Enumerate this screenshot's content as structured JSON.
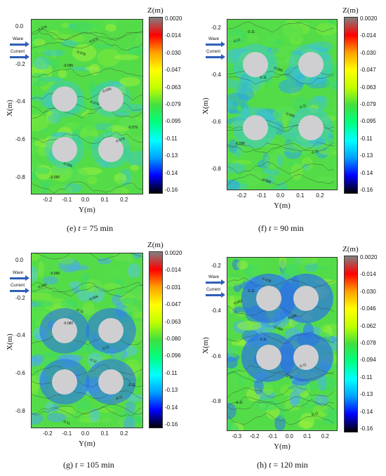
{
  "colorbar": {
    "title": "Z(m)",
    "stops": [
      "#000000",
      "#0000ff",
      "#00a0ff",
      "#00ffff",
      "#00ff80",
      "#40e040",
      "#c0ff00",
      "#ffff00",
      "#ffa000",
      "#ff0000",
      "#808080"
    ]
  },
  "legend": {
    "wave": "Wave",
    "current": "Current"
  },
  "chart_data": [
    {
      "type": "heatmap",
      "caption_prefix": "(e) ",
      "caption_var": "t",
      "caption_value": " = 75 min",
      "xlabel": "Y(m)",
      "ylabel": "X(m)",
      "x_ticks": [
        "-0.2",
        "-0.1",
        "0.0",
        "0.1",
        "0.2"
      ],
      "y_ticks": [
        "0.0",
        "-0.2",
        "-0.4",
        "-0.6",
        "-0.8"
      ],
      "colorbar_ticks": [
        "0.0020",
        "-0.014",
        "-0.030",
        "-0.047",
        "-0.063",
        "-0.079",
        "-0.095",
        "-0.11",
        "-0.13",
        "-0.14",
        "-0.16"
      ],
      "contour_labels": [
        "-0.079",
        "-0.095",
        "-0.079",
        "-0.079",
        "-0.095",
        "-0.079",
        "-0.095",
        "-0.079",
        "-0.095",
        "-0.079"
      ],
      "piles": [
        {
          "y": -0.12,
          "x": -0.38
        },
        {
          "y": 0.12,
          "x": -0.38
        },
        {
          "y": -0.12,
          "x": -0.65
        },
        {
          "y": 0.12,
          "x": -0.65
        }
      ]
    },
    {
      "type": "heatmap",
      "caption_prefix": "(f) ",
      "caption_var": "t",
      "caption_value": " = 90 min",
      "xlabel": "Y(m)",
      "ylabel": "X(m)",
      "x_ticks": [
        "-0.2",
        "-0.1",
        "0.0",
        "0.1",
        "0.2"
      ],
      "y_ticks": [
        "-0.2",
        "-0.4",
        "-0.6",
        "-0.8"
      ],
      "colorbar_ticks": [
        "0.0020",
        "-0.014",
        "-0.030",
        "-0.047",
        "-0.063",
        "-0.079",
        "-0.095",
        "-0.11",
        "-0.13",
        "-0.14",
        "-0.16"
      ],
      "contour_labels": [
        "-0.11",
        "-0.11",
        "-0.095",
        "-0.11",
        "-0.11",
        "-0.095",
        "-0.11",
        "-0.095",
        "-0.095"
      ],
      "piles": [
        {
          "y": -0.14,
          "x": -0.35
        },
        {
          "y": 0.14,
          "x": -0.35
        },
        {
          "y": -0.14,
          "x": -0.62
        },
        {
          "y": 0.14,
          "x": -0.62
        }
      ]
    },
    {
      "type": "heatmap",
      "caption_prefix": "(g) ",
      "caption_var": "t",
      "caption_value": " = 105 min",
      "xlabel": "Y(m)",
      "ylabel": "X(m)",
      "x_ticks": [
        "-0.2",
        "-0.1",
        "0.0",
        "0.1",
        "0.2"
      ],
      "y_ticks": [
        "0.0",
        "-0.2",
        "-0.4",
        "-0.6",
        "-0.8"
      ],
      "colorbar_ticks": [
        "0.0020",
        "-0.014",
        "-0.031",
        "-0.047",
        "-0.063",
        "-0.080",
        "-0.096",
        "-0.11",
        "-0.13",
        "-0.14",
        "-0.16"
      ],
      "contour_labels": [
        "-0.080",
        "-0.080",
        "-0.11",
        "-0.11",
        "-0.096",
        "-0.11",
        "-0.11",
        "-0.11",
        "-0.11",
        "-0.096"
      ],
      "piles": [
        {
          "y": -0.12,
          "x": -0.37
        },
        {
          "y": 0.12,
          "x": -0.37
        },
        {
          "y": -0.12,
          "x": -0.64
        },
        {
          "y": 0.12,
          "x": -0.64
        }
      ]
    },
    {
      "type": "heatmap",
      "caption_prefix": "(h) ",
      "caption_var": "t",
      "caption_value": " = 120 min",
      "xlabel": "Y(m)",
      "ylabel": "X(m)",
      "x_ticks": [
        "-0.3",
        "-0.2",
        "-0.1",
        "0.0",
        "0.1",
        "0.2"
      ],
      "y_ticks": [
        "-0.2",
        "-0.4",
        "-0.6",
        "-0.8"
      ],
      "colorbar_ticks": [
        "0.0020",
        "-0.014",
        "-0.030",
        "-0.046",
        "-0.062",
        "-0.078",
        "-0.094",
        "-0.11",
        "-0.13",
        "-0.14",
        "-0.16"
      ],
      "contour_labels": [
        "-0.062",
        "-0.11",
        "-0.11",
        "-0.11",
        "-0.11",
        "-0.094",
        "-0.11",
        "-0.11",
        "-0.078",
        "-0.094"
      ],
      "piles": [
        {
          "y": -0.13,
          "x": -0.34
        },
        {
          "y": 0.08,
          "x": -0.34
        },
        {
          "y": -0.13,
          "x": -0.6
        },
        {
          "y": 0.08,
          "x": -0.6
        }
      ]
    }
  ]
}
